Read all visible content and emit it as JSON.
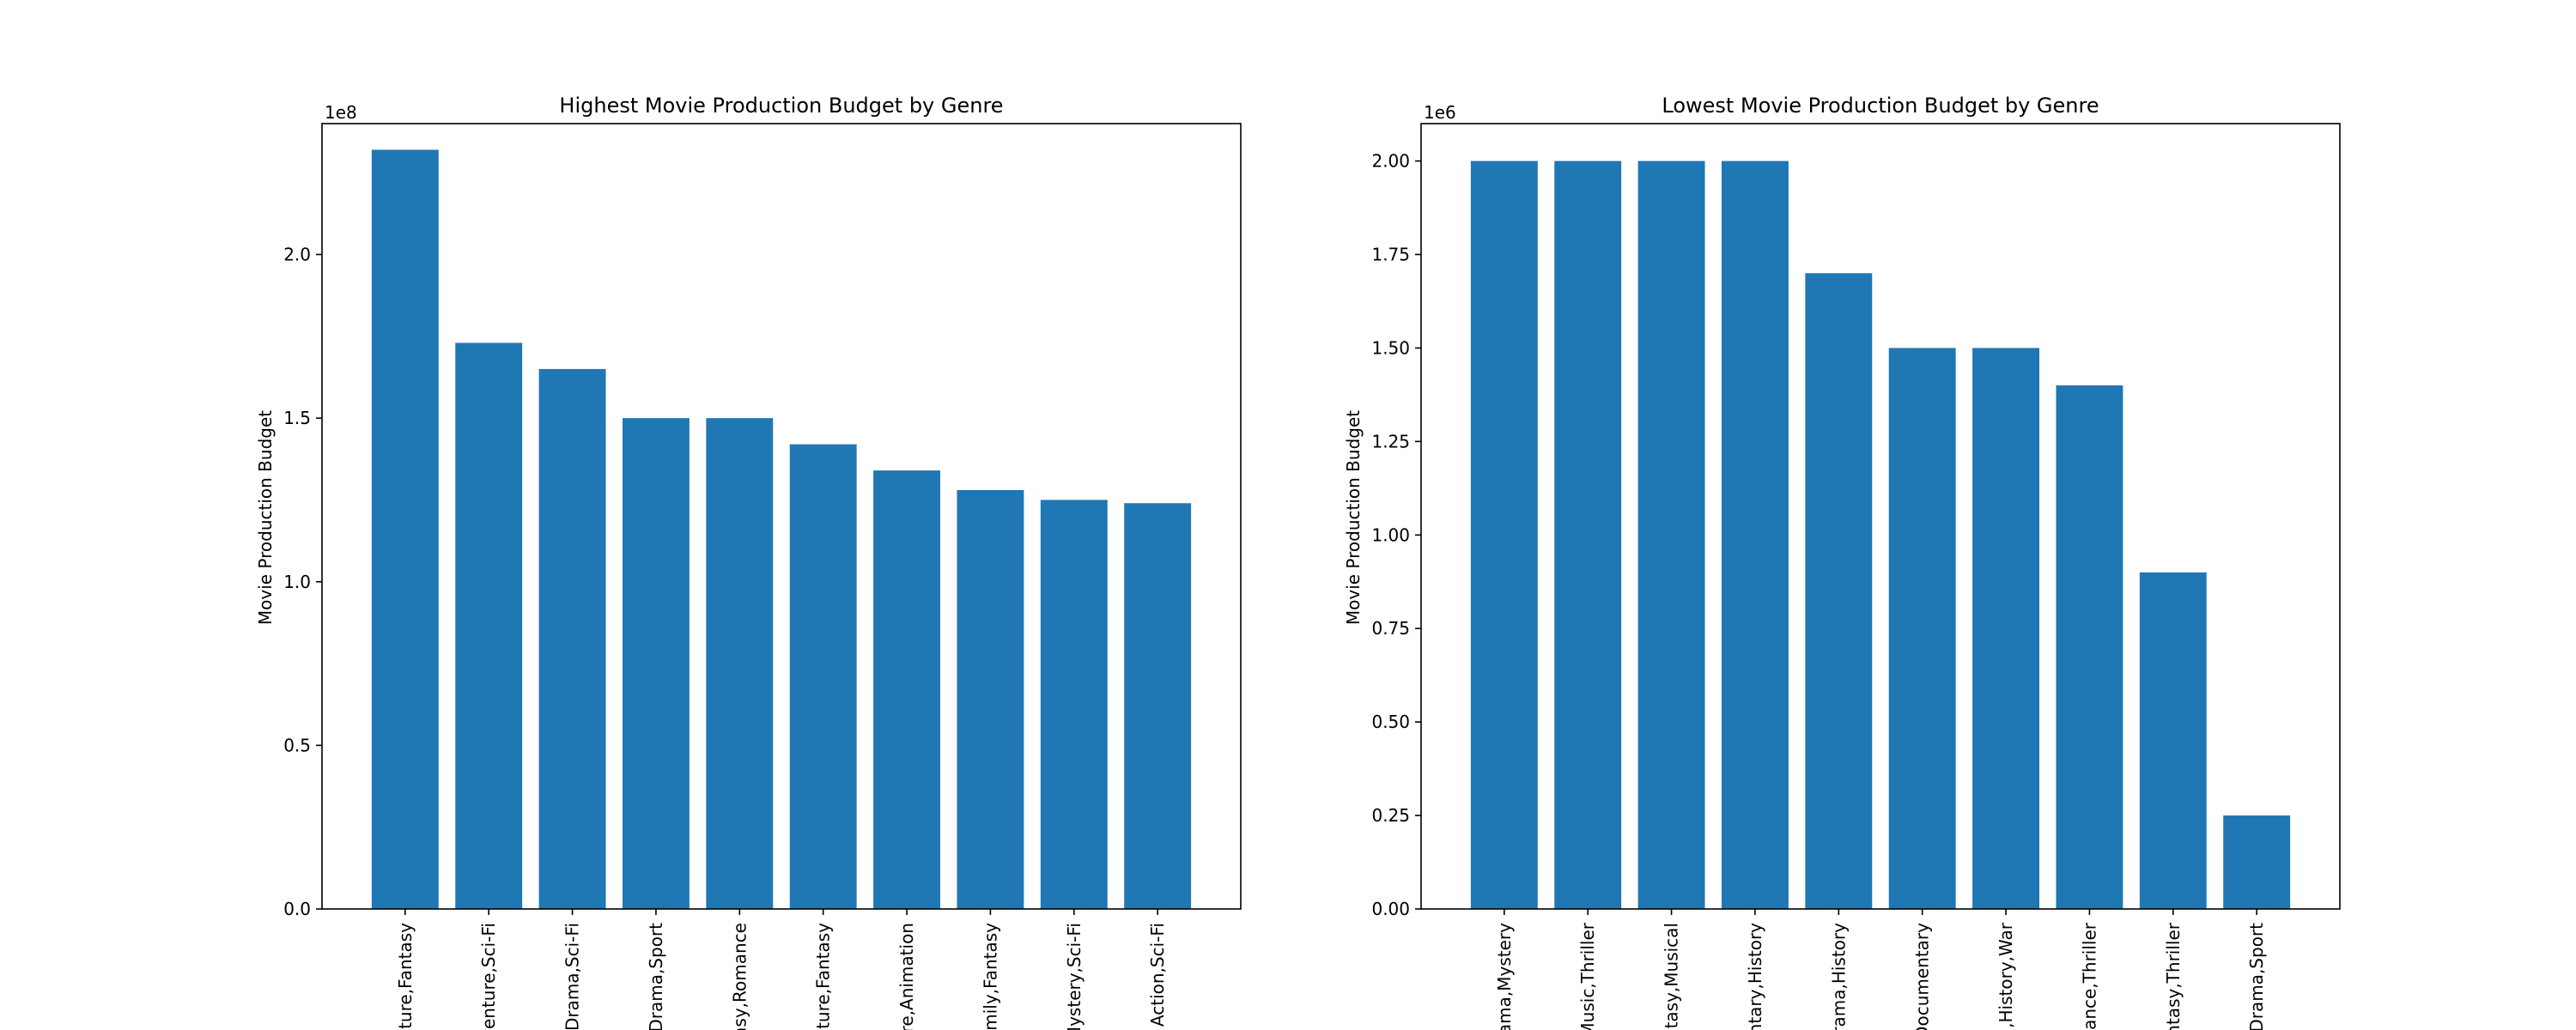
{
  "colors": {
    "bar": "#1f77b4",
    "axis": "#000000",
    "background": "#ffffff"
  },
  "chart_data": [
    {
      "type": "bar",
      "title": "Highest Movie Production Budget by Genre",
      "xlabel": "",
      "ylabel": "Movie Production Budget",
      "offset_label": "1e8",
      "ylim": [
        0,
        240000000
      ],
      "ytick_values": [
        0,
        50000000,
        100000000,
        150000000,
        200000000
      ],
      "ytick_labels": [
        "0.0",
        "0.5",
        "1.0",
        "1.5",
        "2.0"
      ],
      "categories": [
        "ature,Fantasy",
        "venture,Sci-Fi",
        "Drama,Sci-Fi",
        "Drama,Sport",
        "asy,Romance",
        "ature,Fantasy",
        "re,Animation",
        "mily,Fantasy",
        "Mystery,Sci-Fi",
        "Action,Sci-Fi"
      ],
      "values": [
        232000000,
        173000000,
        165000000,
        150000000,
        150000000,
        142000000,
        134000000,
        128000000,
        125000000,
        124000000
      ],
      "grid": false,
      "legend": "none"
    },
    {
      "type": "bar",
      "title": "Lowest Movie Production Budget by Genre",
      "xlabel": "",
      "ylabel": "Movie Production Budget",
      "offset_label": "1e6",
      "ylim": [
        0,
        2100000
      ],
      "ytick_values": [
        0,
        250000,
        500000,
        750000,
        1000000,
        1250000,
        1500000,
        1750000,
        2000000
      ],
      "ytick_labels": [
        "0.00",
        "0.25",
        "0.50",
        "0.75",
        "1.00",
        "1.25",
        "1.50",
        "1.75",
        "2.00"
      ],
      "categories": [
        "ama,Mystery",
        "Music,Thriller",
        "ntasy,Musical",
        "ntary,History",
        "rama,History",
        "Documentary",
        ",History,War",
        "ance,Thriller",
        "ntasy,Thriller",
        "Drama,Sport"
      ],
      "values": [
        2000000,
        2000000,
        2000000,
        2000000,
        1700000,
        1500000,
        1500000,
        1400000,
        900000,
        250000
      ],
      "grid": false,
      "legend": "none"
    }
  ]
}
